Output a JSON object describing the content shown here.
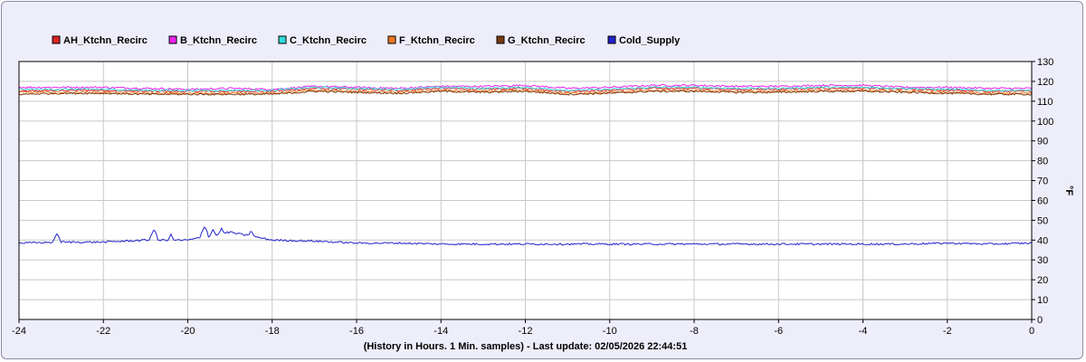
{
  "chart_data": {
    "type": "line",
    "title": "",
    "xlabel": "(History in Hours. 1 Min. samples) - Last update: 02/05/2026 22:44:51",
    "ylabel": "°F",
    "xlim": [
      -24,
      0
    ],
    "ylim": [
      0,
      130
    ],
    "x_ticks": [
      -24,
      -22,
      -20,
      -18,
      -16,
      -14,
      -12,
      -10,
      -8,
      -6,
      -4,
      -2,
      0
    ],
    "y_ticks": [
      0,
      10,
      20,
      30,
      40,
      50,
      60,
      70,
      80,
      90,
      100,
      110,
      120,
      130
    ],
    "y_axis_side": "right",
    "grid": true,
    "legend_position": "top-left",
    "x": [
      -24,
      -23,
      -22,
      -21,
      -20,
      -19,
      -18,
      -17,
      -16,
      -15,
      -14,
      -13,
      -12,
      -11,
      -10,
      -9,
      -8,
      -7,
      -6,
      -5,
      -4,
      -3,
      -2,
      -1,
      0
    ],
    "series": [
      {
        "name": "AH_Ktchn_Recirc",
        "color": "#dd2222",
        "values": [
          115,
          115.5,
          115.5,
          115,
          115,
          115,
          115,
          116.5,
          116,
          115.5,
          116.5,
          116,
          116.5,
          115,
          115.5,
          116.5,
          116.5,
          116,
          116,
          116.5,
          116.5,
          116,
          115.5,
          115,
          115
        ]
      },
      {
        "name": "B_Ktchn_Recirc",
        "color": "#ee22ee",
        "values": [
          117,
          117,
          117,
          116.5,
          116,
          116.5,
          116,
          117.5,
          117,
          116.5,
          117.5,
          117.5,
          118,
          116.5,
          117,
          118,
          118,
          117.5,
          117.5,
          118,
          118,
          117,
          117,
          116.5,
          116.5
        ]
      },
      {
        "name": "C_Ktchn_Recirc",
        "color": "#33dddd",
        "values": [
          116,
          116,
          116,
          115.5,
          115.5,
          115.5,
          115.5,
          117,
          116.5,
          116,
          117,
          116.5,
          117,
          115.5,
          116,
          117,
          117,
          116.5,
          116.5,
          117,
          117,
          116.5,
          116,
          115.5,
          115.5
        ]
      },
      {
        "name": "F_Ktchn_Recirc",
        "color": "#ee7722",
        "values": [
          114.5,
          114.5,
          114.5,
          114,
          114,
          114,
          114,
          115.5,
          115,
          114.5,
          115.5,
          115,
          115.5,
          114,
          114.5,
          115.5,
          115.5,
          115,
          115,
          115.5,
          115.5,
          115,
          114.5,
          114,
          114
        ]
      },
      {
        "name": "G_Ktchn_Recirc",
        "color": "#7a3a10",
        "values": [
          113.5,
          114,
          114,
          113.5,
          113.5,
          113.5,
          113.5,
          115,
          114.5,
          114,
          115,
          114.5,
          115,
          113.5,
          114,
          115,
          115,
          114.5,
          114.5,
          115,
          115,
          114.5,
          114,
          113.5,
          113.5
        ]
      },
      {
        "name": "Cold_Supply",
        "color": "#2222cc",
        "values": [
          38.5,
          39,
          39,
          40,
          40,
          44,
          40,
          39.5,
          38.5,
          38.5,
          38,
          38,
          38,
          38,
          38,
          38,
          38,
          38,
          38,
          38,
          38,
          38,
          38.5,
          38,
          38.5
        ]
      }
    ],
    "peaks": [
      {
        "series": "Cold_Supply",
        "x": [
          -23.1,
          -20.8,
          -20.4,
          -19.6,
          -19.4,
          -19.2,
          -19.0,
          -18.5
        ],
        "y": [
          43.5,
          45.5,
          43,
          47,
          45.5,
          46,
          44.5,
          45
        ]
      }
    ]
  }
}
